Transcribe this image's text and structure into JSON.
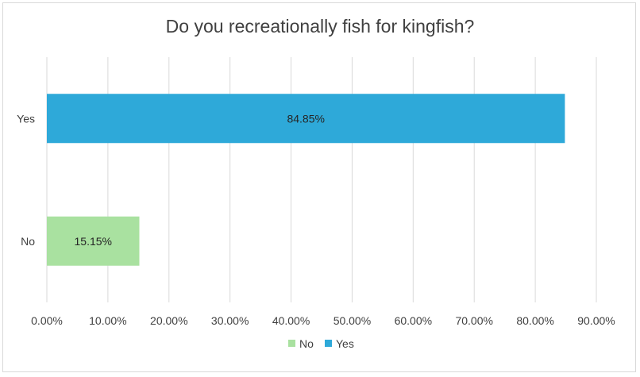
{
  "chart_data": {
    "type": "bar",
    "orientation": "horizontal",
    "title": "Do you recreationally fish for kingfish?",
    "categories": [
      "Yes",
      "No"
    ],
    "values": [
      84.85,
      15.15
    ],
    "value_labels": [
      "84.85%",
      "15.15%"
    ],
    "colors": [
      "#2ea9d9",
      "#a9e1a0"
    ],
    "xlim": [
      0,
      90
    ],
    "xticks": [
      "0.00%",
      "10.00%",
      "20.00%",
      "30.00%",
      "40.00%",
      "50.00%",
      "60.00%",
      "70.00%",
      "80.00%",
      "90.00%"
    ],
    "grid": true,
    "legend": {
      "placement": "bottom",
      "entries": [
        {
          "label": "No",
          "color": "#a9e1a0"
        },
        {
          "label": "Yes",
          "color": "#2ea9d9"
        }
      ]
    }
  }
}
